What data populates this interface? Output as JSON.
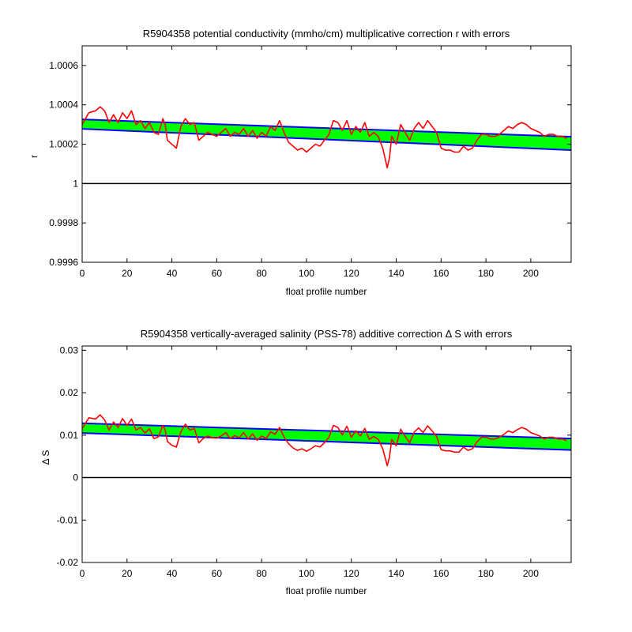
{
  "colors": {
    "background": "#ffffff",
    "axes": "#000000",
    "error_band": "#00ff00",
    "fit_line": "#0000ff",
    "profile_estimate": "#ff0000",
    "reference_line": "#000000"
  },
  "chart_data": [
    {
      "type": "line",
      "title": "R5904358 potential conductivity (mmho/cm) multiplicative correction r with errors",
      "xlabel": "float profile number",
      "ylabel": "r",
      "xlim": [
        0,
        218
      ],
      "ylim": [
        0.9996,
        1.0007
      ],
      "xticks": [
        0,
        20,
        40,
        60,
        80,
        100,
        120,
        140,
        160,
        180,
        200
      ],
      "xtick_labels": [
        "0",
        "20",
        "40",
        "60",
        "80",
        "100",
        "120",
        "140",
        "160",
        "180",
        "200"
      ],
      "yticks": [
        0.9996,
        0.9998,
        1,
        1.0002,
        1.0004,
        1.0006
      ],
      "ytick_labels": [
        "0.9996",
        "0.9998",
        "1",
        "1.0002",
        "1.0004",
        "1.0006"
      ],
      "grid": false,
      "reference_y": 1,
      "fit": {
        "x": [
          0,
          218
        ],
        "y": [
          1.0003,
          1.000205
        ]
      },
      "error_band": {
        "x": [
          0,
          218
        ],
        "lower": [
          1.000278,
          1.00017
        ],
        "upper": [
          1.000326,
          1.000238
        ]
      },
      "series": [
        {
          "x": [
            0,
            3,
            6,
            8,
            10,
            12,
            14,
            16,
            18,
            20,
            22,
            24,
            26,
            28,
            30,
            32,
            34,
            36,
            37,
            38,
            40,
            42,
            44,
            46,
            48,
            50,
            52,
            54,
            56,
            58,
            60,
            62,
            64,
            66,
            68,
            70,
            72,
            74,
            76,
            78,
            80,
            82,
            84,
            86,
            88,
            90,
            92,
            94,
            96,
            98,
            100,
            102,
            104,
            106,
            108,
            110,
            112,
            114,
            116,
            118,
            120,
            122,
            124,
            126,
            128,
            130,
            132,
            133,
            134,
            135,
            136,
            137,
            138,
            140,
            142,
            144,
            146,
            148,
            150,
            152,
            154,
            156,
            158,
            160,
            162,
            164,
            166,
            168,
            170,
            172,
            174,
            176,
            178,
            180,
            182,
            184,
            186,
            188,
            190,
            192,
            194,
            196,
            198,
            200,
            202,
            204,
            206,
            208,
            210,
            212,
            214,
            216
          ],
          "y": [
            1.0003,
            1.00036,
            1.00037,
            1.00039,
            1.00037,
            1.00031,
            1.00035,
            1.00031,
            1.00036,
            1.00033,
            1.00037,
            1.0003,
            1.00032,
            1.00028,
            1.00031,
            1.00026,
            1.00025,
            1.00033,
            1.0003,
            1.00022,
            1.0002,
            1.00018,
            1.00029,
            1.00033,
            1.0003,
            1.00031,
            1.00022,
            1.00024,
            1.00026,
            1.00025,
            1.00024,
            1.00026,
            1.00028,
            1.00024,
            1.00026,
            1.00025,
            1.00028,
            1.00024,
            1.00027,
            1.00023,
            1.00026,
            1.00024,
            1.00029,
            1.00027,
            1.00032,
            1.00026,
            1.00021,
            1.00019,
            1.00017,
            1.00018,
            1.00016,
            1.00018,
            1.0002,
            1.00019,
            1.00022,
            1.00025,
            1.00032,
            1.00031,
            1.00027,
            1.00032,
            1.00025,
            1.00029,
            1.00026,
            1.00031,
            1.00024,
            1.00026,
            1.00024,
            1.00021,
            1.00018,
            1.00013,
            1.00008,
            1.00013,
            1.00024,
            1.0002,
            1.0003,
            1.00026,
            1.00022,
            1.00028,
            1.00031,
            1.00028,
            1.00032,
            1.00029,
            1.00026,
            1.00018,
            1.00017,
            1.00017,
            1.00016,
            1.00016,
            1.00019,
            1.00017,
            1.00018,
            1.00022,
            1.00025,
            1.00025,
            1.00024,
            1.00024,
            1.00025,
            1.00027,
            1.00029,
            1.00028,
            1.0003,
            1.00031,
            1.0003,
            1.00028,
            1.00027,
            1.00026,
            1.00024,
            1.00025,
            1.00025,
            1.00024,
            1.00024,
            1.00023
          ]
        }
      ]
    },
    {
      "type": "line",
      "title": "R5904358 vertically-averaged salinity (PSS-78) additive correction Δ S with errors",
      "xlabel": "float profile number",
      "ylabel": "Δ S",
      "xlim": [
        0,
        218
      ],
      "ylim": [
        -0.02,
        0.031
      ],
      "xticks": [
        0,
        20,
        40,
        60,
        80,
        100,
        120,
        140,
        160,
        180,
        200
      ],
      "xtick_labels": [
        "0",
        "20",
        "40",
        "60",
        "80",
        "100",
        "120",
        "140",
        "160",
        "180",
        "200"
      ],
      "yticks": [
        -0.02,
        -0.01,
        0,
        0.01,
        0.02,
        0.03
      ],
      "ytick_labels": [
        "-0.02",
        "-0.01",
        "0",
        "0.01",
        "0.02",
        "0.03"
      ],
      "grid": false,
      "reference_y": 0,
      "fit": {
        "x": [
          0,
          218
        ],
        "y": [
          0.0117,
          0.0078
        ]
      },
      "error_band": {
        "x": [
          0,
          218
        ],
        "lower": [
          0.0105,
          0.0065
        ],
        "upper": [
          0.0128,
          0.0092
        ]
      },
      "series": [
        {
          "x": [
            0,
            3,
            6,
            8,
            10,
            12,
            14,
            16,
            18,
            20,
            22,
            24,
            26,
            28,
            30,
            32,
            34,
            36,
            37,
            38,
            40,
            42,
            44,
            46,
            48,
            50,
            52,
            54,
            56,
            58,
            60,
            62,
            64,
            66,
            68,
            70,
            72,
            74,
            76,
            78,
            80,
            82,
            84,
            86,
            88,
            90,
            92,
            94,
            96,
            98,
            100,
            102,
            104,
            106,
            108,
            110,
            112,
            114,
            116,
            118,
            120,
            122,
            124,
            126,
            128,
            130,
            132,
            133,
            134,
            135,
            136,
            137,
            138,
            140,
            142,
            144,
            146,
            148,
            150,
            152,
            154,
            156,
            158,
            160,
            162,
            164,
            166,
            168,
            170,
            172,
            174,
            176,
            178,
            180,
            182,
            184,
            186,
            188,
            190,
            192,
            194,
            196,
            198,
            200,
            202,
            204,
            206,
            208,
            210,
            212,
            214,
            216
          ],
          "y": [
            0.0115,
            0.0141,
            0.0138,
            0.0148,
            0.0136,
            0.0112,
            0.0131,
            0.0118,
            0.0139,
            0.0123,
            0.0138,
            0.0112,
            0.0118,
            0.0105,
            0.0115,
            0.0092,
            0.0096,
            0.0123,
            0.0113,
            0.0085,
            0.0076,
            0.0072,
            0.0108,
            0.0126,
            0.0112,
            0.0116,
            0.0082,
            0.0092,
            0.0098,
            0.0094,
            0.0093,
            0.0098,
            0.0106,
            0.0092,
            0.0099,
            0.0094,
            0.0106,
            0.0091,
            0.0103,
            0.0088,
            0.0098,
            0.0092,
            0.0108,
            0.0102,
            0.0118,
            0.0096,
            0.008,
            0.007,
            0.0064,
            0.0068,
            0.0062,
            0.0068,
            0.0075,
            0.0072,
            0.0082,
            0.0095,
            0.0123,
            0.0118,
            0.0101,
            0.0121,
            0.0095,
            0.011,
            0.0098,
            0.0116,
            0.009,
            0.0097,
            0.009,
            0.0079,
            0.0068,
            0.0048,
            0.0028,
            0.0048,
            0.009,
            0.0075,
            0.0114,
            0.0097,
            0.0082,
            0.0107,
            0.0117,
            0.0106,
            0.0122,
            0.011,
            0.0097,
            0.0066,
            0.0063,
            0.0063,
            0.006,
            0.006,
            0.0072,
            0.0064,
            0.0068,
            0.0084,
            0.0095,
            0.0095,
            0.0091,
            0.0091,
            0.0095,
            0.0102,
            0.011,
            0.0106,
            0.0113,
            0.0118,
            0.0114,
            0.0106,
            0.0102,
            0.0098,
            0.0091,
            0.0095,
            0.0095,
            0.0091,
            0.0091,
            0.0087
          ]
        }
      ]
    }
  ]
}
